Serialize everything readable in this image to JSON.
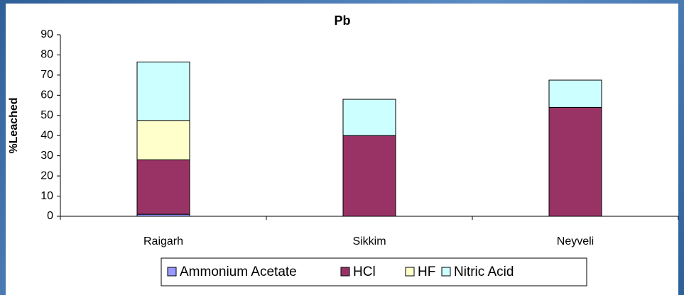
{
  "chart_data": {
    "type": "stacked_bar",
    "title": "Pb",
    "y_label": "%Leached",
    "categories": [
      "Raigarh",
      "Sikkim",
      "Neyveli"
    ],
    "series": [
      {
        "name": "Ammonium Acetate",
        "color": "#9999ff",
        "values": [
          1,
          0,
          0
        ]
      },
      {
        "name": "HCl",
        "color": "#993366",
        "values": [
          27,
          40,
          54
        ]
      },
      {
        "name": "HF",
        "color": "#ffffcc",
        "values": [
          19.5,
          0,
          0
        ]
      },
      {
        "name": "Nitric Acid",
        "color": "#ccffff",
        "values": [
          29,
          18,
          13.5
        ]
      }
    ],
    "ylim": [
      0,
      90
    ],
    "yticks": [
      0,
      10,
      20,
      30,
      40,
      50,
      60,
      70,
      80,
      90
    ],
    "legend": "bottom"
  }
}
